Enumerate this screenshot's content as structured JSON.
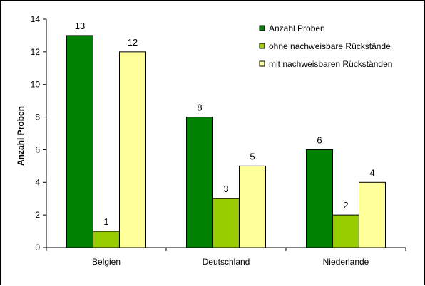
{
  "chart_data": {
    "type": "bar",
    "title": "",
    "xlabel": "",
    "ylabel": "Anzahl Proben",
    "ylim": [
      0,
      14
    ],
    "yticks": [
      0,
      2,
      4,
      6,
      8,
      10,
      12,
      14
    ],
    "grid": false,
    "legend_position": "top-right",
    "categories": [
      "Belgien",
      "Deutschland",
      "Niederlande"
    ],
    "series": [
      {
        "name": "Anzahl Proben",
        "color": "#008000",
        "values": [
          13,
          8,
          6
        ]
      },
      {
        "name": "ohne nachweisbare Rückstände",
        "color": "#99CC00",
        "values": [
          1,
          3,
          2
        ]
      },
      {
        "name": "mit nachweisbaren Rückständen",
        "color": "#FFFF99",
        "values": [
          12,
          5,
          4
        ]
      }
    ]
  }
}
